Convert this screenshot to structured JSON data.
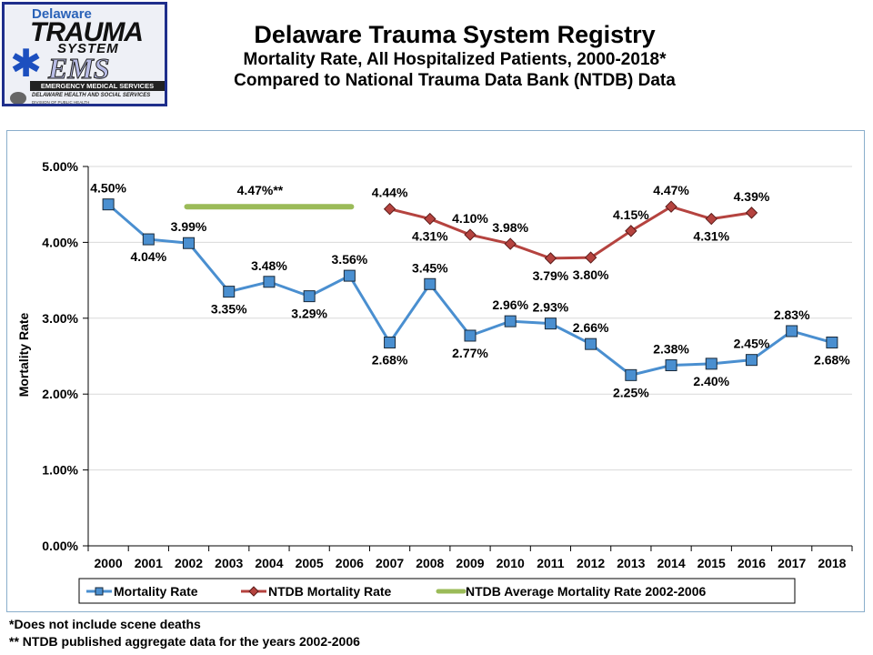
{
  "logo": {
    "line1": "Delaware",
    "line2": "TRAUMA",
    "line3": "SYSTEM",
    "line4": "EMS",
    "line5": "EMERGENCY MEDICAL SERVICES",
    "line6": "DELAWARE HEALTH AND SOCIAL SERVICES",
    "line7": "DIVISION OF PUBLIC HEALTH",
    "icon": "star-of-life-icon"
  },
  "header": {
    "title": "Delaware Trauma System Registry",
    "subtitle1": "Mortality Rate, All Hospitalized Patients, 2000-2018*",
    "subtitle2": "Compared to National Trauma Data Bank (NTDB) Data"
  },
  "footnotes": [
    "*Does not include scene deaths",
    "** NTDB published aggregate data for the years 2002-2006"
  ],
  "chart_data": {
    "type": "line",
    "title": "Mortality Rate, All Hospitalized Patients, 2000-2018",
    "xlabel": "",
    "ylabel": "Mortality Rate",
    "ylim": [
      0,
      5
    ],
    "yticks": [
      "0.00%",
      "1.00%",
      "2.00%",
      "3.00%",
      "4.00%",
      "5.00%"
    ],
    "grid": true,
    "legend_position": "bottom",
    "categories": [
      "2000",
      "2001",
      "2002",
      "2003",
      "2004",
      "2005",
      "2006",
      "2007",
      "2008",
      "2009",
      "2010",
      "2011",
      "2012",
      "2013",
      "2014",
      "2015",
      "2016",
      "2017",
      "2018"
    ],
    "series": [
      {
        "name": "Mortality Rate",
        "color": "#4a8fd0",
        "marker": "square",
        "values": [
          4.5,
          4.04,
          3.99,
          3.35,
          3.48,
          3.29,
          3.56,
          2.68,
          3.45,
          2.77,
          2.96,
          2.93,
          2.66,
          2.25,
          2.38,
          2.4,
          2.45,
          2.83,
          2.68
        ],
        "labels": [
          "4.50%",
          "4.04%",
          "3.99%",
          "3.35%",
          "3.48%",
          "3.29%",
          "3.56%",
          "2.68%",
          "3.45%",
          "2.77%",
          "2.96%",
          "2.93%",
          "2.66%",
          "2.25%",
          "2.38%",
          "2.40%",
          "2.45%",
          "2.83%",
          "2.68%"
        ],
        "label_pos": [
          "above",
          "below",
          "above",
          "below",
          "above",
          "below",
          "above",
          "below",
          "above",
          "below",
          "above",
          "above",
          "above",
          "below",
          "above",
          "below",
          "above",
          "above",
          "below"
        ]
      },
      {
        "name": "NTDB Mortality Rate",
        "color": "#b5433f",
        "marker": "diamond",
        "values": [
          null,
          null,
          null,
          null,
          null,
          null,
          null,
          4.44,
          4.31,
          4.1,
          3.98,
          3.79,
          3.8,
          4.15,
          4.47,
          4.31,
          4.39,
          null,
          null
        ],
        "labels": [
          null,
          null,
          null,
          null,
          null,
          null,
          null,
          "4.44%",
          "4.31%",
          "4.10%",
          "3.98%",
          "3.79%",
          "3.80%",
          "4.15%",
          "4.47%",
          "4.31%",
          "4.39%",
          null,
          null
        ],
        "label_pos": [
          null,
          null,
          null,
          null,
          null,
          null,
          null,
          "above",
          "below",
          "above",
          "above",
          "below",
          "below",
          "above",
          "above",
          "below",
          "above",
          null,
          null
        ]
      },
      {
        "name": "NTDB Average Mortality Rate 2002-2006",
        "color": "#9bbb59",
        "marker": "none",
        "values": [
          null,
          null,
          4.47,
          4.47,
          4.47,
          4.47,
          4.47,
          null,
          null,
          null,
          null,
          null,
          null,
          null,
          null,
          null,
          null,
          null,
          null
        ],
        "annotation": "4.47%**"
      }
    ]
  }
}
